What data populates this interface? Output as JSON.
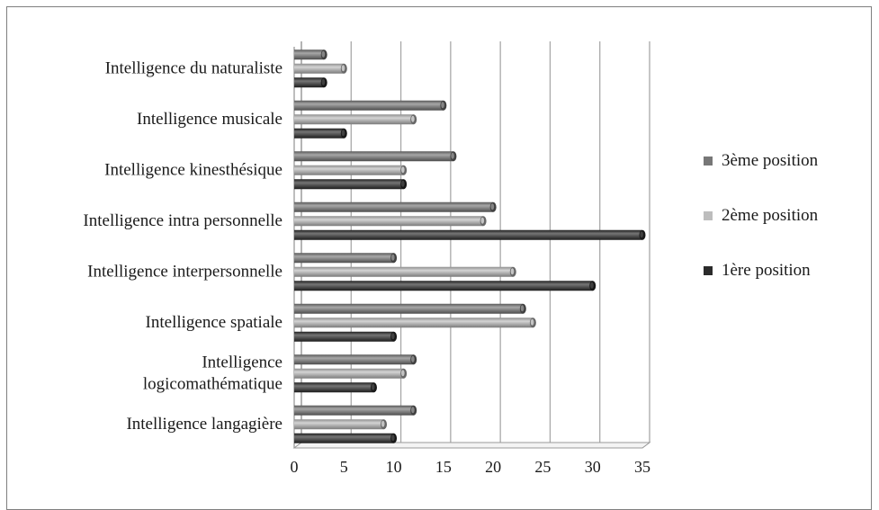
{
  "chart_data": {
    "type": "bar",
    "orientation": "horizontal",
    "style": "3d-cylinder",
    "categories": [
      [
        "Intelligence langagière"
      ],
      [
        "Intelligence",
        "logicomathématique"
      ],
      [
        "Intelligence spatiale"
      ],
      [
        "Intelligence interpersonnelle"
      ],
      [
        "Intelligence intra personnelle"
      ],
      [
        "Intelligence kinesthésique"
      ],
      [
        "Intelligence musicale"
      ],
      [
        "Intelligence du naturaliste"
      ]
    ],
    "series": [
      {
        "name": "1ère position",
        "color": "#2b2b2b",
        "values": [
          10,
          8,
          10,
          30,
          35,
          11,
          5,
          3
        ]
      },
      {
        "name": "2ème position",
        "color": "#bdbdbd",
        "values": [
          9,
          11,
          24,
          22,
          19,
          11,
          12,
          5
        ]
      },
      {
        "name": "3ème position",
        "color": "#777777",
        "values": [
          12,
          12,
          23,
          10,
          20,
          16,
          15,
          3
        ]
      }
    ],
    "xlim": [
      0,
      35
    ],
    "xticks": [
      "0",
      "5",
      "10",
      "15",
      "20",
      "25",
      "30",
      "35"
    ],
    "grid": true,
    "legend_position": "right",
    "legend_order": [
      "3ème position",
      "2ème position",
      "1ère position"
    ]
  }
}
